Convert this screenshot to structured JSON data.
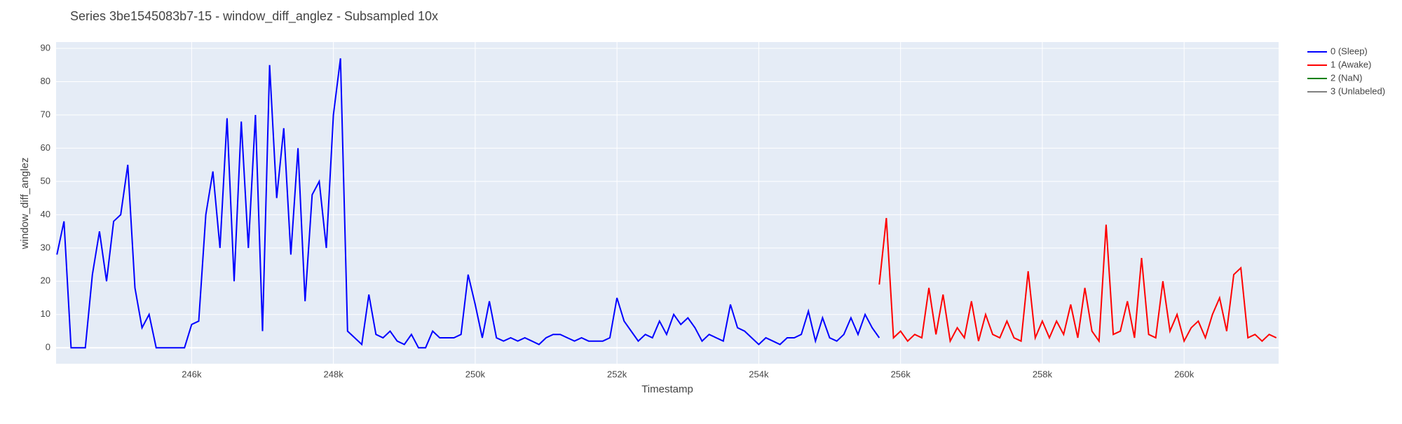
{
  "chart_data": {
    "type": "line",
    "title": "Series 3be1545083b7-15 - window_diff_anglez - Subsampled 10x",
    "x_label": "Timestamp",
    "y_label": "window_diff_anglez",
    "xlim": [
      244088,
      261333
    ],
    "ylim": [
      -4.8,
      91.9
    ],
    "xticks": [
      {
        "value": 246000,
        "label": "246k"
      },
      {
        "value": 248000,
        "label": "248k"
      },
      {
        "value": 250000,
        "label": "250k"
      },
      {
        "value": 252000,
        "label": "252k"
      },
      {
        "value": 254000,
        "label": "254k"
      },
      {
        "value": 256000,
        "label": "256k"
      },
      {
        "value": 258000,
        "label": "258k"
      },
      {
        "value": 260000,
        "label": "260k"
      }
    ],
    "yticks": [
      0,
      10,
      20,
      30,
      40,
      50,
      60,
      70,
      80,
      90
    ],
    "grid": true,
    "legend": "right",
    "series": [
      {
        "name": "0 (Sleep)",
        "color": "#0000ff",
        "x": [
          244100,
          244200,
          244300,
          244400,
          244500,
          244600,
          244700,
          244800,
          244900,
          245000,
          245100,
          245200,
          245300,
          245400,
          245500,
          245600,
          245700,
          245800,
          245900,
          246000,
          246100,
          246200,
          246300,
          246400,
          246500,
          246600,
          246700,
          246800,
          246900,
          247000,
          247100,
          247200,
          247300,
          247400,
          247500,
          247600,
          247700,
          247800,
          247900,
          248000,
          248100,
          248200,
          248300,
          248400,
          248500,
          248600,
          248700,
          248800,
          248900,
          249000,
          249100,
          249200,
          249300,
          249400,
          249500,
          249600,
          249700,
          249800,
          249900,
          250000,
          250100,
          250200,
          250300,
          250400,
          250500,
          250600,
          250700,
          250800,
          250900,
          251000,
          251100,
          251200,
          251300,
          251400,
          251500,
          251600,
          251700,
          251800,
          251900,
          252000,
          252100,
          252200,
          252300,
          252400,
          252500,
          252600,
          252700,
          252800,
          252900,
          253000,
          253100,
          253200,
          253300,
          253400,
          253500,
          253600,
          253700,
          253800,
          253900,
          254000,
          254100,
          254200,
          254300,
          254400,
          254500,
          254600,
          254700,
          254800,
          254900,
          255000,
          255100,
          255200,
          255300,
          255400,
          255500,
          255600,
          255700
        ],
        "values": [
          28,
          38,
          0,
          0,
          0,
          22,
          35,
          20,
          38,
          40,
          55,
          18,
          6,
          10,
          0,
          0,
          0,
          0,
          0,
          7,
          8,
          40,
          53,
          30,
          69,
          20,
          68,
          30,
          70,
          5,
          85,
          45,
          66,
          28,
          60,
          14,
          46,
          50,
          30,
          70,
          87,
          5,
          3,
          1,
          16,
          4,
          3,
          5,
          2,
          1,
          4,
          0,
          0,
          5,
          3,
          3,
          3,
          4,
          22,
          13,
          3,
          14,
          3,
          2,
          3,
          2,
          3,
          2,
          1,
          3,
          4,
          4,
          3,
          2,
          3,
          2,
          2,
          2,
          3,
          15,
          8,
          5,
          2,
          4,
          3,
          8,
          4,
          10,
          7,
          9,
          6,
          2,
          4,
          3,
          2,
          13,
          6,
          5,
          3,
          1,
          3,
          2,
          1,
          3,
          3,
          4,
          11,
          2,
          9,
          3,
          2,
          4,
          9,
          4,
          10,
          6,
          3
        ]
      },
      {
        "name": "1 (Awake)",
        "color": "#ff0000",
        "x": [
          255700,
          255800,
          255900,
          256000,
          256100,
          256200,
          256300,
          256400,
          256500,
          256600,
          256700,
          256800,
          256900,
          257000,
          257100,
          257200,
          257300,
          257400,
          257500,
          257600,
          257700,
          257800,
          257900,
          258000,
          258100,
          258200,
          258300,
          258400,
          258500,
          258600,
          258700,
          258800,
          258900,
          259000,
          259100,
          259200,
          259300,
          259400,
          259500,
          259600,
          259700,
          259800,
          259900,
          260000,
          260100,
          260200,
          260300,
          260400,
          260500,
          260600,
          260700,
          260800,
          260900,
          261000,
          261100,
          261200,
          261300
        ],
        "values": [
          19,
          39,
          3,
          5,
          2,
          4,
          3,
          18,
          4,
          16,
          2,
          6,
          3,
          14,
          2,
          10,
          4,
          3,
          8,
          3,
          2,
          23,
          3,
          8,
          3,
          8,
          4,
          13,
          3,
          18,
          5,
          2,
          37,
          4,
          5,
          14,
          3,
          27,
          4,
          3,
          20,
          5,
          10,
          2,
          6,
          8,
          3,
          10,
          15,
          5,
          22,
          24,
          3,
          4,
          2,
          4,
          3
        ]
      },
      {
        "name": "2 (NaN)",
        "color": "#008000",
        "x": [],
        "values": []
      },
      {
        "name": "3 (Unlabeled)",
        "color": "#808080",
        "x": [],
        "values": []
      }
    ]
  }
}
